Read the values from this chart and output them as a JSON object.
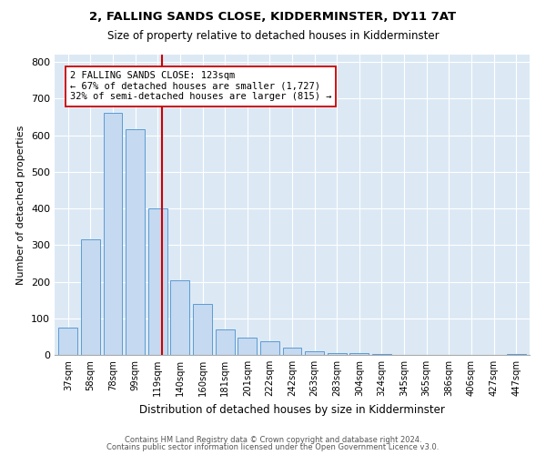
{
  "title1": "2, FALLING SANDS CLOSE, KIDDERMINSTER, DY11 7AT",
  "title2": "Size of property relative to detached houses in Kidderminster",
  "xlabel": "Distribution of detached houses by size in Kidderminster",
  "ylabel": "Number of detached properties",
  "categories": [
    "37sqm",
    "58sqm",
    "78sqm",
    "99sqm",
    "119sqm",
    "140sqm",
    "160sqm",
    "181sqm",
    "201sqm",
    "222sqm",
    "242sqm",
    "263sqm",
    "283sqm",
    "304sqm",
    "324sqm",
    "345sqm",
    "365sqm",
    "386sqm",
    "406sqm",
    "427sqm",
    "447sqm"
  ],
  "values": [
    75,
    315,
    660,
    615,
    400,
    205,
    138,
    70,
    47,
    37,
    20,
    10,
    5,
    4,
    2,
    1,
    1,
    0,
    0,
    0,
    3
  ],
  "bar_color": "#c5d9f0",
  "bar_edge_color": "#5b9bd5",
  "marker_label1": "2 FALLING SANDS CLOSE: 123sqm",
  "marker_label2": "← 67% of detached houses are smaller (1,727)",
  "marker_label3": "32% of semi-detached houses are larger (815) →",
  "annotation_box_color": "#ffffff",
  "annotation_box_edge": "#cc0000",
  "vline_color": "#cc0000",
  "grid_color": "#c0d0e0",
  "background_color": "#dce9f5",
  "ylim": [
    0,
    820
  ],
  "yticks": [
    0,
    100,
    200,
    300,
    400,
    500,
    600,
    700,
    800
  ],
  "footer1": "Contains HM Land Registry data © Crown copyright and database right 2024.",
  "footer2": "Contains public sector information licensed under the Open Government Licence v3.0."
}
